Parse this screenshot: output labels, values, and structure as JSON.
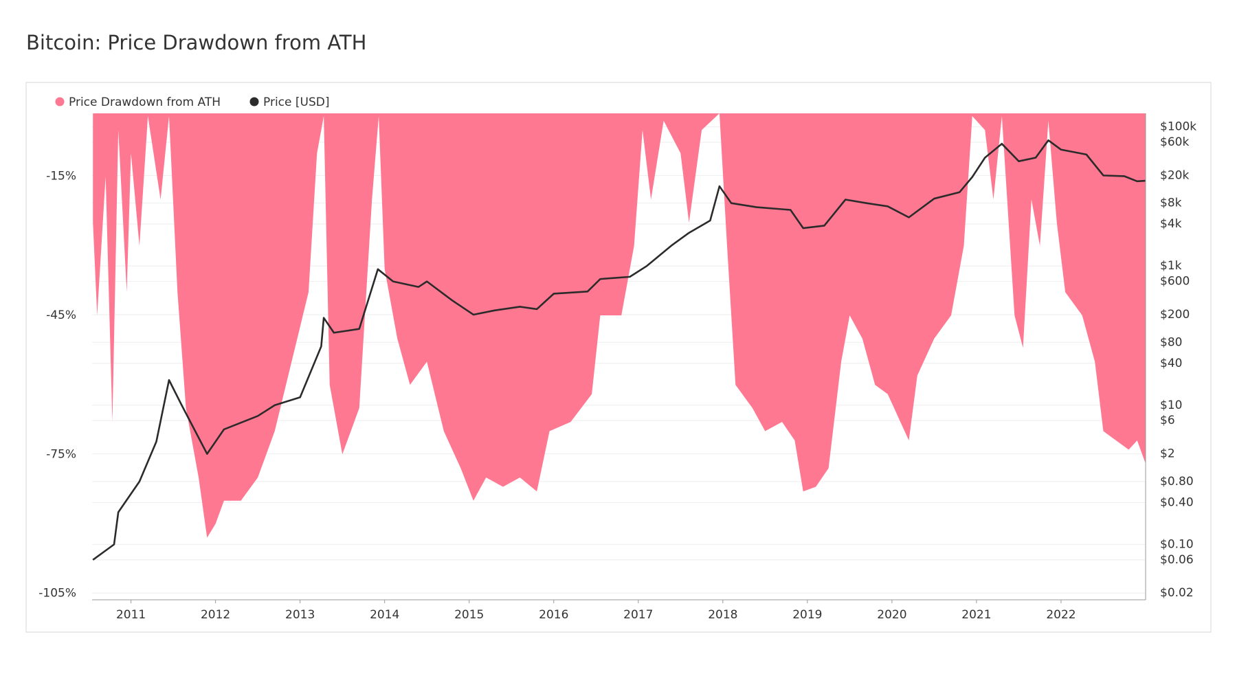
{
  "chart_data": {
    "type": "combo",
    "title": "Bitcoin: Price Drawdown from ATH",
    "xlim": [
      2010.54,
      2023.0
    ],
    "xticks": [
      2011,
      2012,
      2013,
      2014,
      2015,
      2016,
      2017,
      2018,
      2019,
      2020,
      2021,
      2022
    ],
    "ylim": [
      -106.4,
      -1.4
    ],
    "yticks": [
      {
        "value": -15,
        "label": "-15%"
      },
      {
        "value": -45,
        "label": "-45%"
      },
      {
        "value": -75,
        "label": "-75%"
      },
      {
        "value": -105,
        "label": "-105%"
      }
    ],
    "y2log": true,
    "y2lim": [
      0.016,
      156000
    ],
    "y2ticks": [
      {
        "value": 100000,
        "label": "$100k"
      },
      {
        "value": 60000,
        "label": "$60k"
      },
      {
        "value": 20000,
        "label": "$20k"
      },
      {
        "value": 8000,
        "label": "$8k"
      },
      {
        "value": 4000,
        "label": "$4k"
      },
      {
        "value": 1000,
        "label": "$1k"
      },
      {
        "value": 600,
        "label": "$600"
      },
      {
        "value": 200,
        "label": "$200"
      },
      {
        "value": 80,
        "label": "$80"
      },
      {
        "value": 40,
        "label": "$40"
      },
      {
        "value": 10,
        "label": "$10"
      },
      {
        "value": 6,
        "label": "$6"
      },
      {
        "value": 2,
        "label": "$2"
      },
      {
        "value": 0.8,
        "label": "$0.80"
      },
      {
        "value": 0.4,
        "label": "$0.40"
      },
      {
        "value": 0.1,
        "label": "$0.10"
      },
      {
        "value": 0.06,
        "label": "$0.06"
      },
      {
        "value": 0.02,
        "label": "$0.02"
      }
    ],
    "grid": true,
    "series": [
      {
        "name": "Price Drawdown from ATH",
        "type": "area",
        "color": "#ff7892",
        "x": [
          2010.55,
          2010.6,
          2010.7,
          2010.78,
          2010.85,
          2010.95,
          2011.0,
          2011.1,
          2011.2,
          2011.35,
          2011.45,
          2011.55,
          2011.65,
          2011.8,
          2011.9,
          2012.0,
          2012.1,
          2012.3,
          2012.5,
          2012.7,
          2012.9,
          2013.1,
          2013.2,
          2013.28,
          2013.35,
          2013.5,
          2013.7,
          2013.85,
          2013.93,
          2014.0,
          2014.15,
          2014.3,
          2014.5,
          2014.7,
          2014.9,
          2015.05,
          2015.2,
          2015.4,
          2015.6,
          2015.8,
          2015.95,
          2016.2,
          2016.45,
          2016.55,
          2016.8,
          2016.95,
          2017.05,
          2017.15,
          2017.3,
          2017.5,
          2017.6,
          2017.75,
          2017.96,
          2018.05,
          2018.15,
          2018.35,
          2018.5,
          2018.7,
          2018.85,
          2018.95,
          2019.1,
          2019.25,
          2019.4,
          2019.5,
          2019.65,
          2019.8,
          2019.95,
          2020.2,
          2020.3,
          2020.5,
          2020.7,
          2020.85,
          2020.95,
          2021.1,
          2021.2,
          2021.3,
          2021.45,
          2021.55,
          2021.65,
          2021.75,
          2021.85,
          2021.95,
          2022.05,
          2022.25,
          2022.4,
          2022.5,
          2022.65,
          2022.8,
          2022.9,
          2023.0
        ],
        "values": [
          -25,
          -45,
          -15,
          -68,
          -5,
          -40,
          -10,
          -30,
          -2,
          -20,
          -2,
          -40,
          -65,
          -80,
          -93,
          -90,
          -85,
          -85,
          -80,
          -70,
          -55,
          -40,
          -10,
          -2,
          -60,
          -75,
          -65,
          -20,
          -2,
          -35,
          -50,
          -60,
          -55,
          -70,
          -78,
          -85,
          -80,
          -82,
          -80,
          -83,
          -70,
          -68,
          -62,
          -45,
          -45,
          -30,
          -5,
          -20,
          -3,
          -10,
          -25,
          -5,
          -1.4,
          -30,
          -60,
          -65,
          -70,
          -68,
          -72,
          -83,
          -82,
          -78,
          -55,
          -45,
          -50,
          -60,
          -62,
          -72,
          -58,
          -50,
          -45,
          -30,
          -2,
          -5,
          -20,
          -2,
          -45,
          -52,
          -20,
          -30,
          -3,
          -25,
          -40,
          -45,
          -55,
          -70,
          -72,
          -74,
          -72,
          -77
        ]
      },
      {
        "name": "Price [USD]",
        "type": "line",
        "axis": "y2",
        "color": "#2b2b2b",
        "x": [
          2010.55,
          2010.8,
          2010.85,
          2011.1,
          2011.3,
          2011.45,
          2011.6,
          2011.9,
          2012.1,
          2012.5,
          2012.7,
          2013.0,
          2013.25,
          2013.28,
          2013.4,
          2013.7,
          2013.92,
          2014.1,
          2014.4,
          2014.5,
          2014.8,
          2015.05,
          2015.3,
          2015.6,
          2015.8,
          2016.0,
          2016.4,
          2016.55,
          2016.9,
          2017.1,
          2017.4,
          2017.6,
          2017.85,
          2017.96,
          2018.1,
          2018.4,
          2018.8,
          2018.95,
          2019.2,
          2019.45,
          2019.7,
          2019.95,
          2020.2,
          2020.5,
          2020.8,
          2020.95,
          2021.1,
          2021.3,
          2021.5,
          2021.7,
          2021.85,
          2022.0,
          2022.3,
          2022.5,
          2022.75,
          2022.9,
          2023.0
        ],
        "values": [
          0.06,
          0.1,
          0.29,
          0.8,
          3,
          23,
          10,
          2,
          4.5,
          7,
          10,
          13,
          70,
          180,
          110,
          125,
          900,
          600,
          500,
          600,
          320,
          200,
          230,
          260,
          240,
          400,
          430,
          650,
          700,
          1000,
          2000,
          3000,
          4500,
          14000,
          8000,
          7000,
          6400,
          3500,
          3800,
          9000,
          8000,
          7200,
          5000,
          9300,
          11500,
          19000,
          36000,
          57000,
          32000,
          36000,
          64000,
          47000,
          40000,
          20000,
          19500,
          16500,
          16800
        ]
      }
    ]
  }
}
